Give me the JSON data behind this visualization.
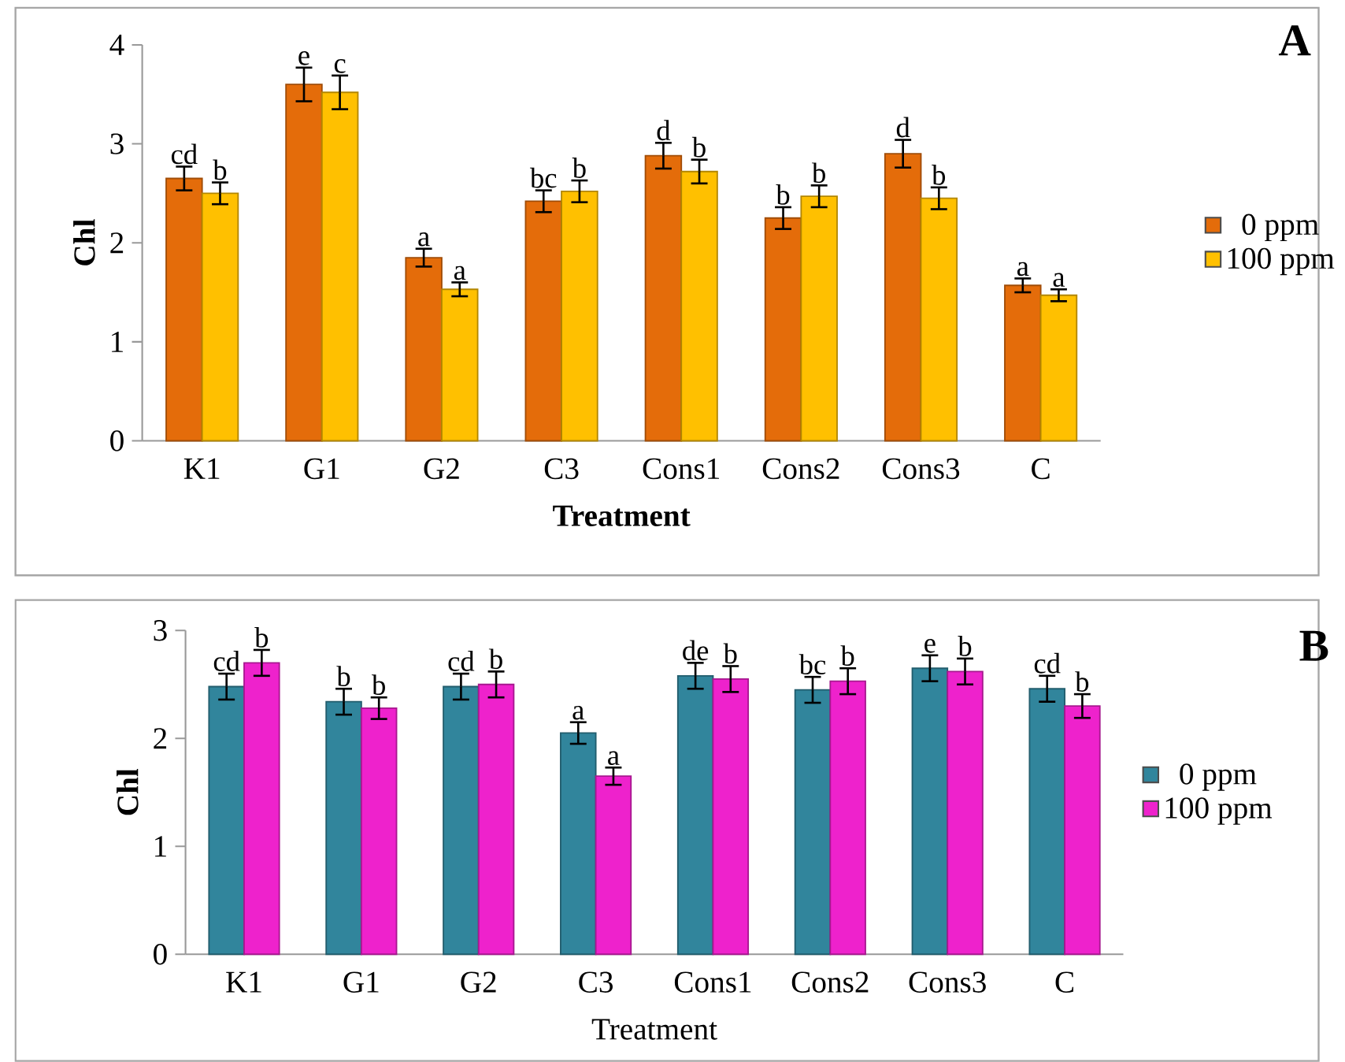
{
  "chart_data": [
    {
      "type": "bar",
      "xlabel": "Treatment",
      "ylabel": "Chl",
      "categories": [
        "K1",
        "G1",
        "G2",
        "C3",
        "Cons1",
        "Cons2",
        "Cons3",
        "C"
      ],
      "series": [
        {
          "name": "0 ppm",
          "color": "#e46c0a",
          "values": [
            2.65,
            3.6,
            1.85,
            2.42,
            2.88,
            2.25,
            2.9,
            1.57
          ],
          "errors": [
            0.12,
            0.17,
            0.09,
            0.11,
            0.13,
            0.11,
            0.14,
            0.07
          ]
        },
        {
          "name": "100 ppm",
          "color": "#ffc000",
          "values": [
            2.5,
            3.52,
            1.53,
            2.52,
            2.72,
            2.47,
            2.45,
            1.47
          ],
          "errors": [
            0.11,
            0.17,
            0.07,
            0.11,
            0.12,
            0.11,
            0.11,
            0.06
          ]
        }
      ],
      "ylim": [
        0,
        4
      ],
      "yticks": [
        0,
        1,
        2,
        3,
        4
      ],
      "legend": "right",
      "grid": false,
      "annotations": [
        "cd",
        "b",
        "e",
        "c",
        "a",
        "a",
        "bc",
        "b",
        "d",
        "b",
        "b",
        "b",
        "d",
        "b",
        "a",
        "a",
        "A"
      ]
    },
    {
      "type": "bar",
      "xlabel": "Treatment",
      "ylabel": "Chl",
      "categories": [
        "K1",
        "G1",
        "G2",
        "C3",
        "Cons1",
        "Cons2",
        "Cons3",
        "C"
      ],
      "series": [
        {
          "name": "0 ppm",
          "color": "#31859c",
          "values": [
            2.48,
            2.34,
            2.48,
            2.05,
            2.58,
            2.45,
            2.65,
            2.46
          ],
          "errors": [
            0.12,
            0.12,
            0.12,
            0.1,
            0.12,
            0.12,
            0.12,
            0.12
          ]
        },
        {
          "name": "100 ppm",
          "color": "#ee22cc",
          "values": [
            2.7,
            2.28,
            2.5,
            1.65,
            2.55,
            2.53,
            2.62,
            2.3
          ],
          "errors": [
            0.12,
            0.1,
            0.12,
            0.08,
            0.12,
            0.12,
            0.12,
            0.11
          ]
        }
      ],
      "ylim": [
        0,
        3
      ],
      "yticks": [
        0,
        1,
        2,
        3
      ],
      "legend": "right",
      "grid": false,
      "annotations": [
        "cd",
        "b",
        "b",
        "b",
        "cd",
        "b",
        "a",
        "a",
        "de",
        "b",
        "bc",
        "b",
        "e",
        "b",
        "cd",
        "b",
        "B"
      ]
    }
  ]
}
